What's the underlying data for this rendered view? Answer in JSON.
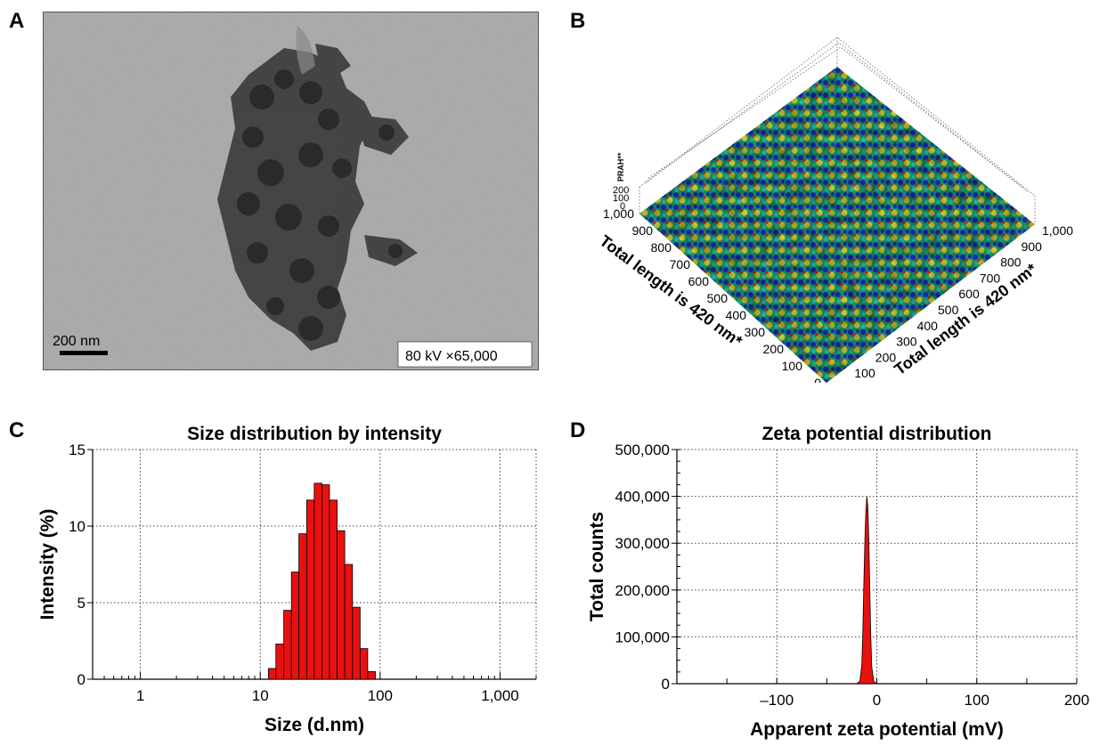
{
  "panels": {
    "a": {
      "letter": "A",
      "scale_bar_label": "200 nm",
      "info_label": "80 kV ×65,000"
    },
    "b": {
      "letter": "B",
      "z_axis_label": "PRAH**",
      "z_ticks": [
        "200",
        "100",
        "0"
      ],
      "left_axis_ticks": [
        "1,000",
        "900",
        "800",
        "700",
        "600",
        "500",
        "400",
        "300",
        "200",
        "100",
        "0"
      ],
      "right_axis_ticks": [
        "1,000",
        "900",
        "800",
        "700",
        "600",
        "500",
        "400",
        "300",
        "200",
        "100",
        "0"
      ],
      "left_axis_label": "Total length is 420 nm*",
      "right_axis_label": "Total length is 420 nm*",
      "colors": {
        "low": "#1a2fd6",
        "mid": "#1fd0b0",
        "high": "#e8e83a",
        "peak": "#e0321c"
      }
    },
    "c": {
      "letter": "C"
    },
    "d": {
      "letter": "D"
    }
  },
  "chart_data": [
    {
      "type": "bar",
      "title": "Size distribution by intensity",
      "xlabel": "Size (d.nm)",
      "ylabel": "Intensity (%)",
      "x_scale": "log",
      "xlim": [
        0.4,
        2000
      ],
      "ylim": [
        0,
        15
      ],
      "x_ticks": [
        1,
        10,
        100,
        1000
      ],
      "x_tick_labels": [
        "1",
        "10",
        "100",
        "1,000"
      ],
      "y_ticks": [
        0,
        5,
        10,
        15
      ],
      "y_tick_labels": [
        "0",
        "5",
        "10",
        "15"
      ],
      "grid": true,
      "color": "#e8110f",
      "bin_edges": [
        11.7,
        13.5,
        15.7,
        18.2,
        21.0,
        24.4,
        28.2,
        32.7,
        37.8,
        43.8,
        50.7,
        58.8,
        68.1,
        78.8,
        91.3
      ],
      "values": [
        0.7,
        2.3,
        4.5,
        7.0,
        9.5,
        11.7,
        12.8,
        12.7,
        11.7,
        9.7,
        7.5,
        4.7,
        2.0,
        0.5
      ]
    },
    {
      "type": "area",
      "title": "Zeta potential distribution",
      "xlabel": "Apparent zeta potential (mV)",
      "ylabel": "Total counts",
      "xlim": [
        -200,
        200
      ],
      "ylim": [
        0,
        500000
      ],
      "x_ticks": [
        -100,
        0,
        100,
        200
      ],
      "x_tick_labels": [
        "–100",
        "0",
        "100",
        "200"
      ],
      "y_ticks": [
        0,
        100000,
        200000,
        300000,
        400000,
        500000
      ],
      "y_tick_labels": [
        "0",
        "100,000",
        "200,000",
        "300,000",
        "400,000",
        "500,000"
      ],
      "grid": true,
      "color": "#e8110f",
      "x": [
        -20,
        -17,
        -15,
        -14,
        -13,
        -12,
        -11,
        -10,
        -9,
        -8,
        -7,
        -6,
        -5,
        -3,
        0
      ],
      "y": [
        0,
        5000,
        40000,
        110000,
        210000,
        300000,
        365000,
        400000,
        380000,
        310000,
        200000,
        100000,
        35000,
        5000,
        0
      ]
    }
  ]
}
